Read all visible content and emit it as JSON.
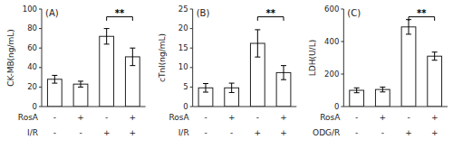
{
  "chart_data": [
    {
      "type": "bar",
      "title": "(A)",
      "y_label": "CK-MB(ng/mL)",
      "categories": [
        null,
        null,
        null,
        null
      ],
      "values": [
        28,
        23,
        72,
        51
      ],
      "errors": [
        4,
        3,
        8,
        9
      ],
      "color": "#ffffff",
      "ylim": [
        0,
        100
      ],
      "yticks": [
        0,
        20,
        40,
        60,
        80,
        100
      ],
      "grid": false,
      "rows": [
        {
          "name": "RosA",
          "labels": [
            "-",
            "+",
            "-",
            "+"
          ]
        },
        {
          "name": "I/R",
          "labels": [
            "-",
            "-",
            "+",
            "+"
          ]
        }
      ],
      "annotations": [
        {
          "text": "**",
          "from": 2,
          "to": 3
        }
      ]
    },
    {
      "type": "bar",
      "title": "(B)",
      "y_label": "cTnI(ng/mL)",
      "categories": [
        null,
        null,
        null,
        null
      ],
      "values": [
        4.8,
        4.8,
        16.2,
        8.7
      ],
      "errors": [
        1.1,
        1.2,
        3.5,
        1.8
      ],
      "color": "#ffffff",
      "ylim": [
        0,
        25
      ],
      "yticks": [
        0,
        5,
        10,
        15,
        20,
        25
      ],
      "grid": false,
      "rows": [
        {
          "name": "RosA",
          "labels": [
            "-",
            "+",
            "-",
            "+"
          ]
        },
        {
          "name": "I/R",
          "labels": [
            "-",
            "-",
            "+",
            "+"
          ]
        }
      ],
      "annotations": [
        {
          "text": "**",
          "from": 2,
          "to": 3
        }
      ]
    },
    {
      "type": "bar",
      "title": "(C)",
      "y_label": "LDH(U/L)",
      "categories": [
        null,
        null,
        null,
        null
      ],
      "values": [
        100,
        105,
        490,
        310
      ],
      "errors": [
        15,
        15,
        45,
        25
      ],
      "color": "#ffffff",
      "ylim": [
        0,
        600
      ],
      "yticks": [
        0,
        200,
        400,
        600
      ],
      "grid": false,
      "rows": [
        {
          "name": "RosA",
          "labels": [
            "-",
            "+",
            "-",
            "+"
          ]
        },
        {
          "name": "ODG/R",
          "labels": [
            "-",
            "-",
            "+",
            "+"
          ]
        }
      ],
      "annotations": [
        {
          "text": "**",
          "from": 2,
          "to": 3
        }
      ]
    }
  ]
}
